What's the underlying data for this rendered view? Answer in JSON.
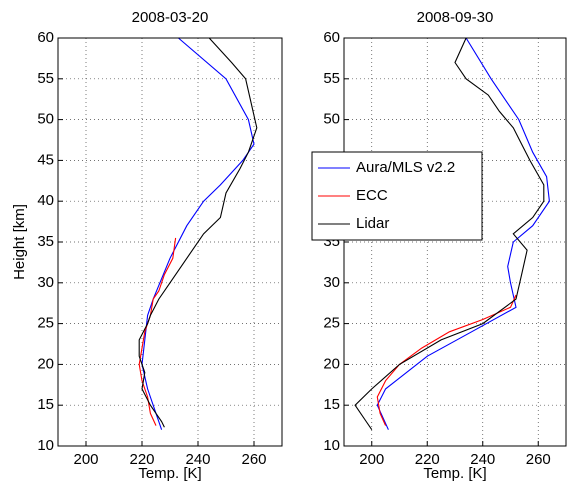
{
  "chart_data": [
    {
      "type": "line",
      "title": "2008-03-20",
      "xlabel": "Temp. [K]",
      "ylabel": "Height [km]",
      "xlim": [
        190,
        270
      ],
      "xticks": [
        200,
        220,
        240,
        260
      ],
      "ylim": [
        10,
        60
      ],
      "yticks": [
        10,
        15,
        20,
        25,
        30,
        35,
        40,
        45,
        50,
        55,
        60
      ],
      "grid": true,
      "series": [
        {
          "color": "#0000ff",
          "x": [
            233,
            250,
            258,
            260,
            256,
            248,
            242,
            236,
            230,
            224,
            222,
            221,
            220,
            222,
            225,
            227
          ],
          "values": [
            60,
            55,
            50,
            47,
            45,
            42,
            40,
            37,
            33,
            28,
            26,
            23,
            20,
            17,
            14,
            12
          ]
        },
        {
          "color": "#ff0000",
          "x": [
            232,
            231,
            228,
            226,
            224,
            223,
            221,
            220,
            219,
            220,
            222,
            223,
            225
          ],
          "values": [
            35.5,
            33,
            31,
            29,
            28,
            26,
            24,
            22,
            20,
            18,
            16,
            14,
            12.5
          ]
        },
        {
          "color": "#000000",
          "x": [
            244,
            252,
            257,
            259,
            261,
            258,
            255,
            250,
            248,
            242,
            236,
            230,
            226,
            223,
            222,
            219,
            219,
            221,
            220,
            223,
            225,
            227,
            228
          ],
          "values": [
            60,
            57,
            55,
            52,
            49,
            46,
            44,
            41,
            38,
            36,
            33,
            30,
            28,
            26,
            25,
            23,
            21,
            19,
            17,
            15,
            14,
            13,
            12.3
          ]
        }
      ]
    },
    {
      "type": "line",
      "title": "2008-09-30",
      "xlabel": "Temp. [K]",
      "xlim": [
        190,
        270
      ],
      "xticks": [
        200,
        220,
        240,
        260
      ],
      "ylim": [
        10,
        60
      ],
      "yticks": [
        10,
        15,
        20,
        25,
        30,
        35,
        40,
        45,
        50,
        55,
        60
      ],
      "grid": true,
      "legend": "upper left",
      "series": [
        {
          "name": "Aura/MLS v2.2",
          "color": "#0000ff",
          "x": [
            234,
            243,
            249,
            253,
            258,
            263,
            264,
            258,
            251,
            249,
            250,
            252,
            236,
            220,
            205,
            202,
            206
          ],
          "values": [
            60,
            55,
            52,
            50,
            46,
            43,
            40,
            37,
            35,
            32,
            30,
            27,
            24,
            21,
            17,
            15,
            12
          ]
        },
        {
          "name": "ECC",
          "color": "#ff0000",
          "x": [
            252,
            250,
            240,
            228,
            218,
            210,
            205,
            202,
            203,
            205
          ],
          "values": [
            28.5,
            27,
            25.5,
            24,
            22,
            20,
            18,
            16,
            14,
            12.5
          ]
        },
        {
          "name": "Lidar",
          "color": "#000000",
          "x": [
            234,
            230,
            234,
            242,
            246,
            251,
            254,
            257,
            262,
            262,
            258,
            251,
            256,
            254,
            252,
            240,
            225,
            210,
            200,
            194,
            198,
            200
          ],
          "values": [
            60,
            57,
            55,
            53,
            51,
            49,
            47,
            45,
            42,
            40,
            38,
            36,
            34,
            31,
            28,
            25,
            23,
            20,
            17,
            15,
            13,
            12
          ]
        }
      ]
    }
  ]
}
